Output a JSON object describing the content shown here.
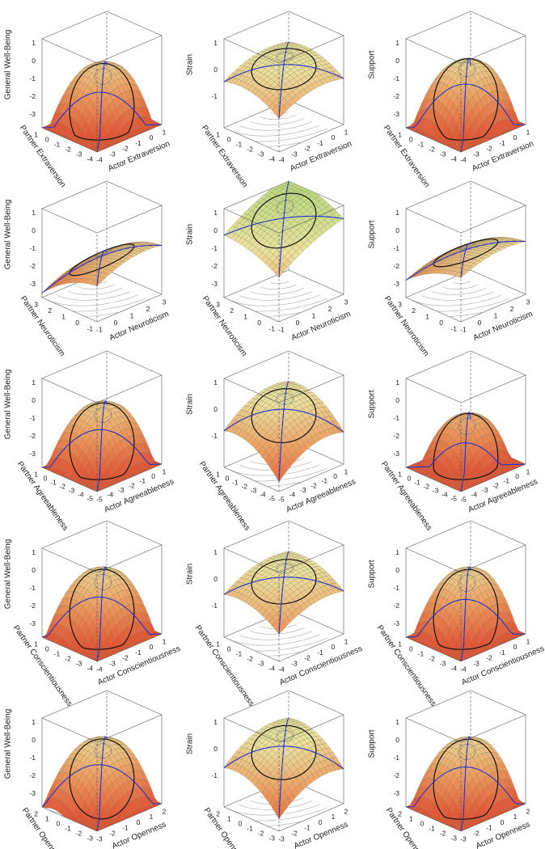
{
  "panels": [
    {
      "zlabel": "General Well-Being",
      "zticks": [
        1,
        0,
        -1,
        -2,
        -3
      ],
      "ylabel": "Partner Extraversion",
      "yticks": [
        1,
        0,
        -1,
        -2,
        -3,
        -4
      ],
      "xlabel": "Actor Extraversion",
      "xticks": [
        -4,
        -3,
        -2,
        -1,
        0,
        1
      ]
    },
    {
      "zlabel": "Strain",
      "zticks": [
        1,
        0,
        -1
      ],
      "ylabel": "Partner Extraversion",
      "yticks": [
        1,
        0,
        -1,
        -2,
        -3,
        -4
      ],
      "xlabel": "Actor Extraversion",
      "xticks": [
        -4,
        -3,
        -2,
        -1,
        0,
        1
      ]
    },
    {
      "zlabel": "Support",
      "zticks": [
        1,
        0,
        -1,
        -2,
        -3
      ],
      "ylabel": "Partner Extraversion",
      "yticks": [
        1,
        0,
        -1,
        -2,
        -3,
        -4
      ],
      "xlabel": "Actor Extraversion",
      "xticks": [
        -4,
        -3,
        -2,
        -1,
        0,
        1
      ]
    },
    {
      "zlabel": "General Well-Being",
      "zticks": [
        1,
        0,
        -1,
        -2,
        -3
      ],
      "ylabel": "Partner Neuroticism",
      "yticks": [
        3,
        2,
        1,
        0,
        -1
      ],
      "xlabel": "Actor Neuroticism",
      "xticks": [
        -1,
        0,
        1,
        2,
        3
      ]
    },
    {
      "zlabel": "Strain",
      "zticks": [
        1,
        0,
        -1,
        -2,
        -3
      ],
      "ylabel": "Partner Neuroticism",
      "yticks": [
        3,
        2,
        1,
        0,
        -1
      ],
      "xlabel": "Actor Neuroticism",
      "xticks": [
        -1,
        0,
        1,
        2,
        3
      ]
    },
    {
      "zlabel": "Support",
      "zticks": [
        1,
        0,
        -1,
        -2,
        -3
      ],
      "ylabel": "Partner Neuroticism",
      "yticks": [
        3,
        2,
        1,
        0,
        -1
      ],
      "xlabel": "Actor Neuroticism",
      "xticks": [
        -1,
        0,
        1,
        2,
        3
      ]
    },
    {
      "zlabel": "General Well-Being",
      "zticks": [
        1,
        0,
        -1,
        -2,
        -3
      ],
      "ylabel": "Partner Agreeableness",
      "yticks": [
        1,
        0,
        -1,
        -2,
        -3,
        -4,
        -5
      ],
      "xlabel": "Actor Agreeableness",
      "xticks": [
        -5,
        -4,
        -3,
        -2,
        -1,
        0,
        1
      ]
    },
    {
      "zlabel": "Strain",
      "zticks": [
        1,
        0,
        -1
      ],
      "ylabel": "Partner Agreeableness",
      "yticks": [
        1,
        0,
        -1,
        -2,
        -3,
        -4,
        -5
      ],
      "xlabel": "Actor Agreeableness",
      "xticks": [
        -5,
        -4,
        -3,
        -2,
        -1,
        0,
        1
      ]
    },
    {
      "zlabel": "Support",
      "zticks": [
        1,
        0,
        -1,
        -2,
        -3
      ],
      "ylabel": "Partner Agreeableness",
      "yticks": [
        1,
        0,
        -1,
        -2,
        -3,
        -4,
        -5
      ],
      "xlabel": "Actor Agreeableness",
      "xticks": [
        -5,
        -4,
        -3,
        -2,
        -1,
        0,
        1
      ]
    },
    {
      "zlabel": "General Well-Being",
      "zticks": [
        1,
        0,
        -1,
        -2,
        -3
      ],
      "ylabel": "Partner Conscientiousness",
      "yticks": [
        1,
        0,
        -1,
        -2,
        -3,
        -4
      ],
      "xlabel": "Actor Conscientiousness",
      "xticks": [
        -4,
        -3,
        -2,
        -1,
        0,
        1
      ]
    },
    {
      "zlabel": "Strain",
      "zticks": [
        1,
        0,
        -1
      ],
      "ylabel": "Partner Conscientiousness",
      "yticks": [
        1,
        0,
        -1,
        -2,
        -3,
        -4
      ],
      "xlabel": "Actor Conscientiousness",
      "xticks": [
        -4,
        -3,
        -2,
        -1,
        0,
        1
      ]
    },
    {
      "zlabel": "Support",
      "zticks": [
        1,
        0,
        -1,
        -2,
        -3
      ],
      "ylabel": "Partner Conscientiousness",
      "yticks": [
        1,
        0,
        -1,
        -2,
        -3,
        -4
      ],
      "xlabel": "Actor Conscientiousness",
      "xticks": [
        -4,
        -3,
        -2,
        -1,
        0,
        1
      ]
    },
    {
      "zlabel": "General Well-Being",
      "zticks": [
        1,
        0,
        -1,
        -2,
        -3
      ],
      "ylabel": "Partner Openness",
      "yticks": [
        2,
        1,
        0,
        -1,
        -2,
        -3
      ],
      "xlabel": "Actor Openness",
      "xticks": [
        -3,
        -2,
        -1,
        0,
        1,
        2
      ]
    },
    {
      "zlabel": "Strain",
      "zticks": [
        1,
        0,
        -1
      ],
      "ylabel": "Partner Openness",
      "yticks": [
        2,
        1,
        0,
        -1,
        -2,
        -3
      ],
      "xlabel": "Actor Openness",
      "xticks": [
        -3,
        -2,
        -1,
        0,
        1,
        2
      ]
    },
    {
      "zlabel": "Support",
      "zticks": [
        1,
        0,
        -1,
        -2,
        -3
      ],
      "ylabel": "Partner Openness",
      "yticks": [
        2,
        1,
        0,
        -1,
        -2,
        -3
      ],
      "xlabel": "Actor Openness",
      "xticks": [
        -3,
        -2,
        -1,
        0,
        1,
        2
      ]
    }
  ]
}
